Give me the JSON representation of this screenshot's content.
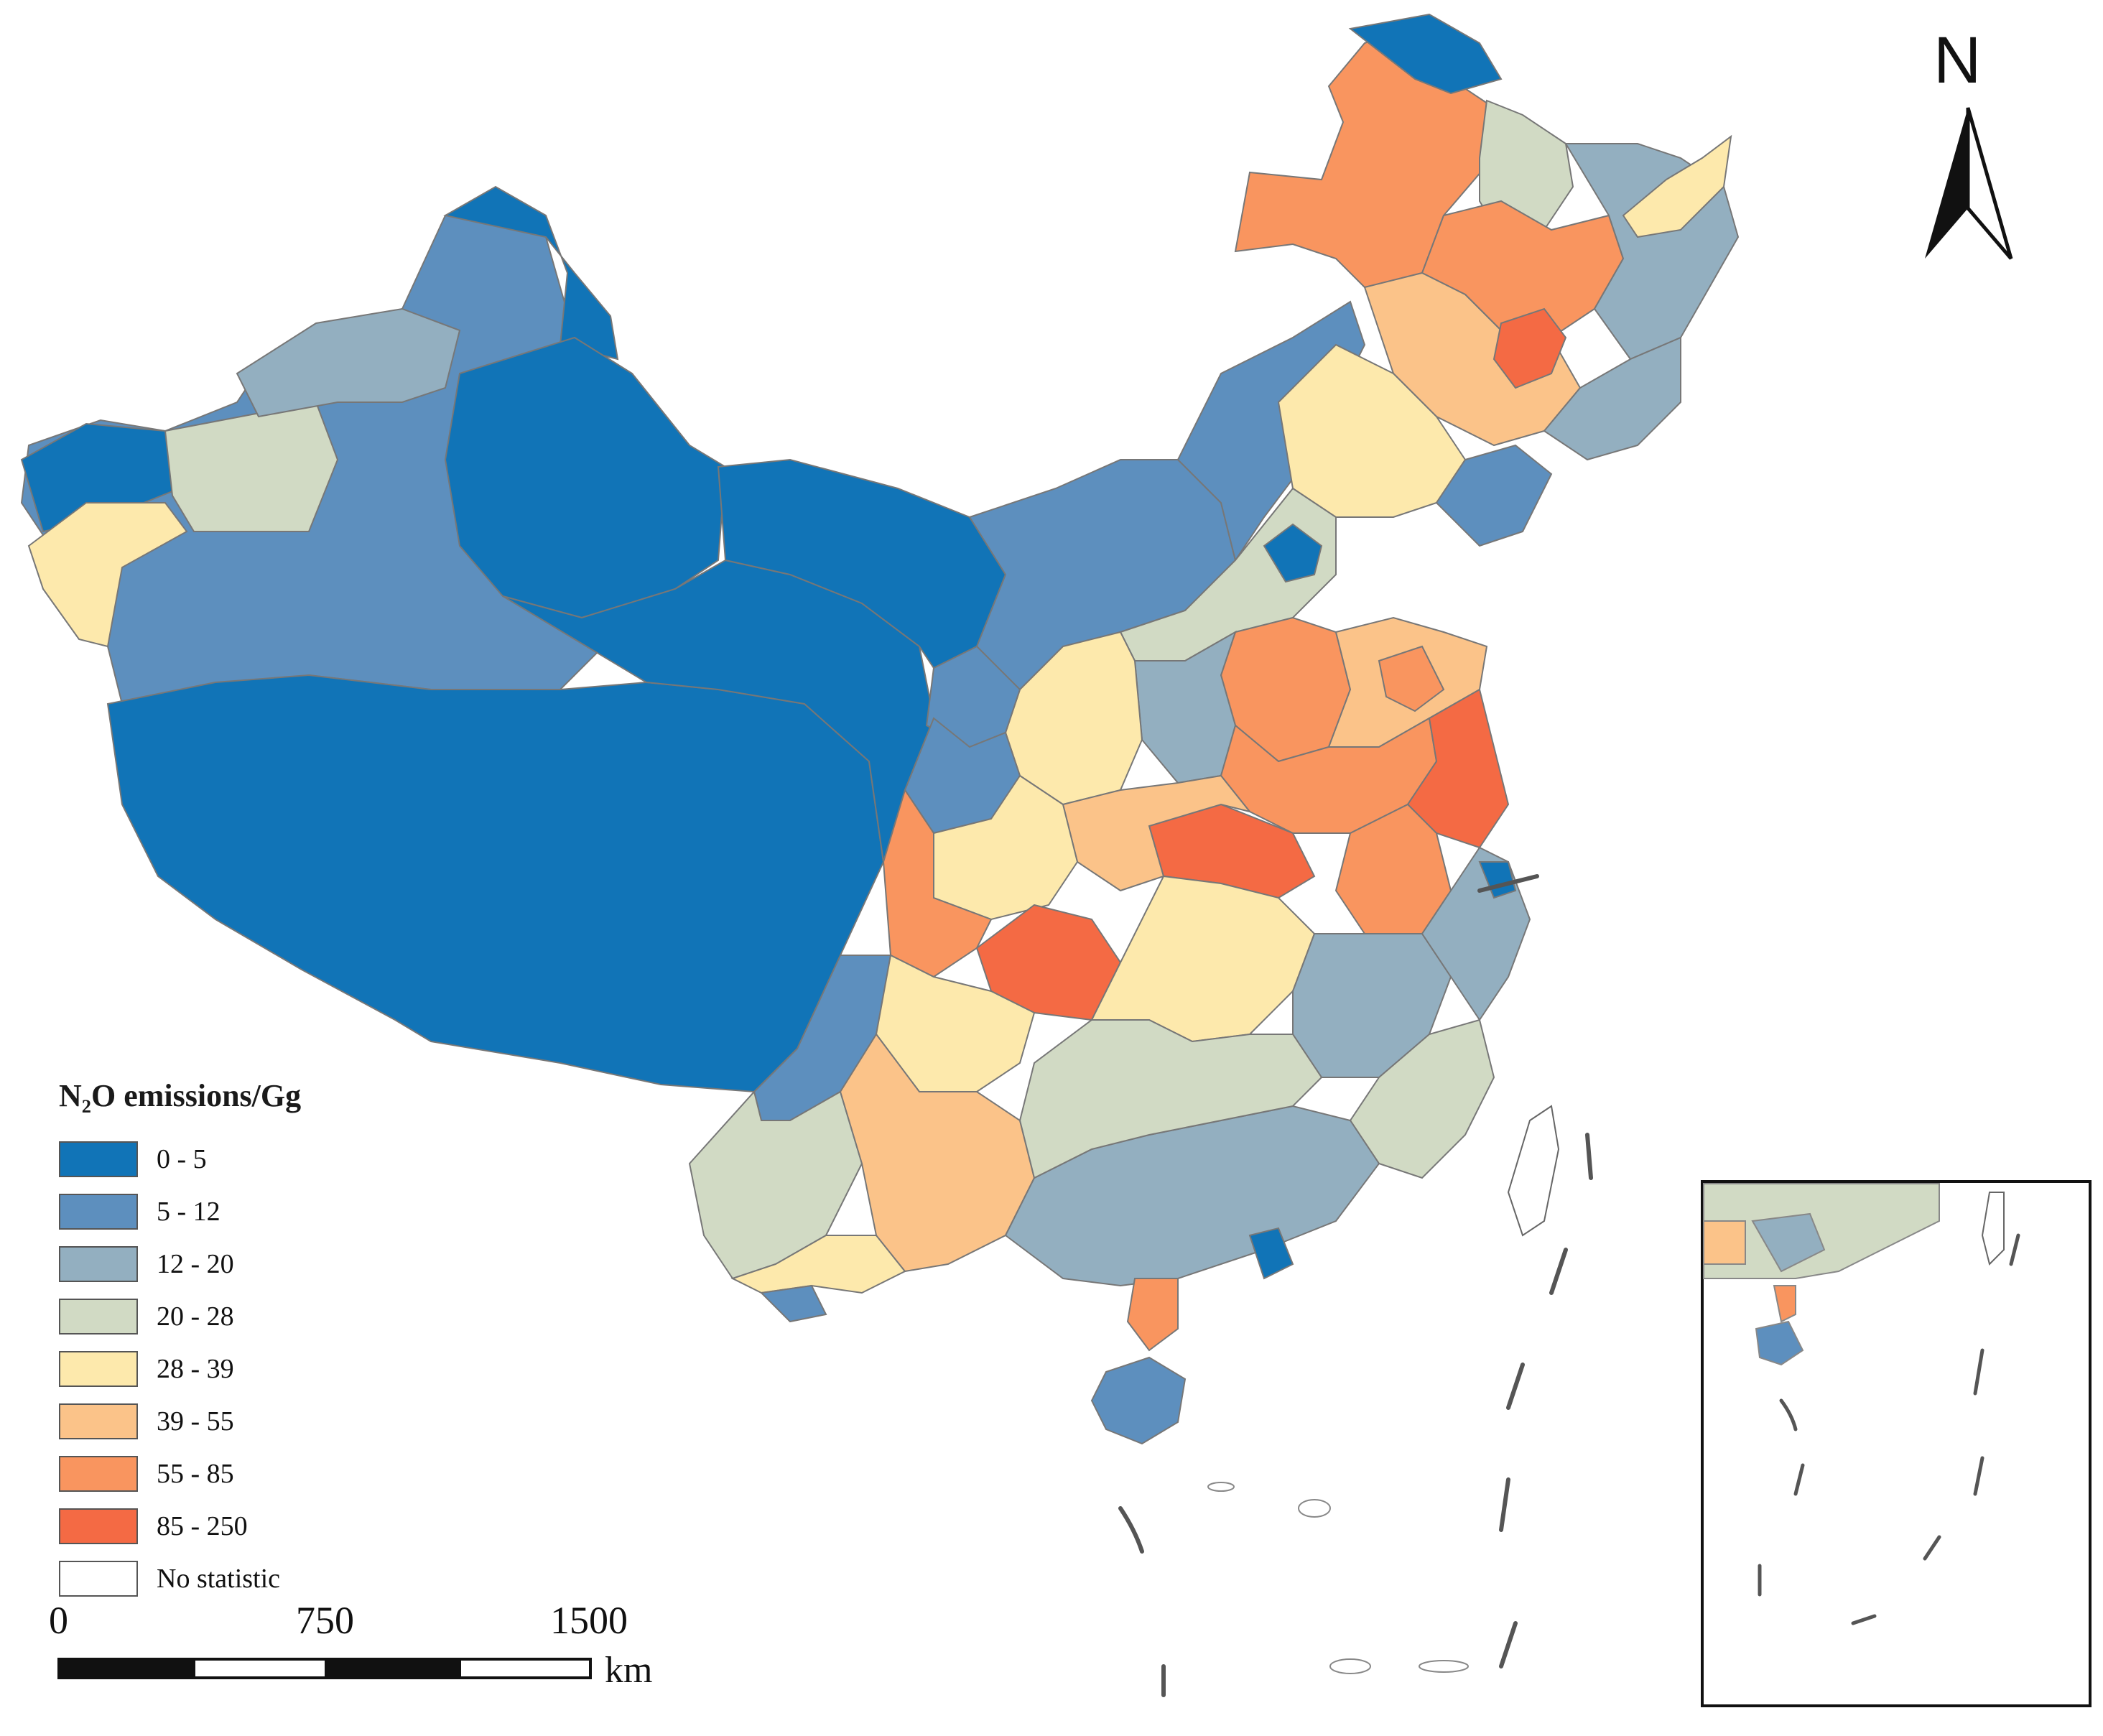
{
  "legend": {
    "title": "N₂O emissions/Gg",
    "items": [
      {
        "label": "0 - 5",
        "color": "#1174b7"
      },
      {
        "label": "5 - 12",
        "color": "#5d8fbe"
      },
      {
        "label": "12 - 20",
        "color": "#93afc0"
      },
      {
        "label": "20 - 28",
        "color": "#d1dac4"
      },
      {
        "label": "28 - 39",
        "color": "#fde9ac"
      },
      {
        "label": "39 - 55",
        "color": "#fbc389"
      },
      {
        "label": "55 - 85",
        "color": "#f9955f"
      },
      {
        "label": "85 - 250",
        "color": "#f46a44"
      },
      {
        "label": "No  statistic",
        "color": "#ffffff"
      }
    ]
  },
  "scalebar": {
    "labels": [
      "0",
      "750",
      "1500"
    ],
    "unit": "km"
  },
  "north_arrow": {
    "label": "N"
  }
}
